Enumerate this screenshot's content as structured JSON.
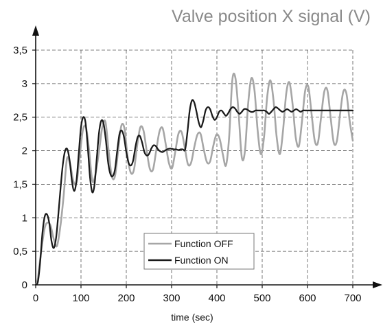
{
  "chart_data": {
    "type": "line",
    "title": "Valve position X signal (V)",
    "xlabel": "time (sec)",
    "ylabel": "",
    "xlim": [
      0,
      700
    ],
    "ylim": [
      0,
      3.5
    ],
    "x_ticks": [
      0,
      100,
      200,
      300,
      400,
      500,
      600,
      700
    ],
    "x_tick_labels": [
      "0",
      "100",
      "200",
      "300",
      "400",
      "500",
      "600",
      "700"
    ],
    "y_ticks": [
      0,
      0.5,
      1,
      1.5,
      2,
      2.5,
      3,
      3.5
    ],
    "y_tick_labels": [
      "0",
      "0,5",
      "1",
      "1,5",
      "2",
      "2,5",
      "3",
      "3,5"
    ],
    "grid": "dashed",
    "legend_position": "bottom-center",
    "series": [
      {
        "name": "Function OFF",
        "color": "#a6a6a6",
        "x": [
          0,
          5,
          12,
          20,
          27,
          33,
          40,
          47,
          55,
          62,
          69,
          76,
          83,
          90,
          97,
          104,
          111,
          118,
          125,
          132,
          140,
          147,
          154,
          161,
          168,
          175,
          182,
          189,
          196,
          203,
          210,
          217,
          224,
          231,
          238,
          245,
          252,
          259,
          266,
          273,
          280,
          287,
          294,
          301,
          308,
          315,
          322,
          329,
          336,
          343,
          350,
          357,
          364,
          371,
          378,
          385,
          392,
          399,
          406,
          413,
          420,
          427,
          434,
          441,
          448,
          455,
          462,
          469,
          476,
          483,
          490,
          497,
          504,
          511,
          518,
          525,
          532,
          539,
          546,
          553,
          560,
          567,
          574,
          581,
          588,
          595,
          602,
          609,
          616,
          623,
          630,
          637,
          644,
          651,
          658,
          665,
          672,
          679,
          686,
          693,
          700
        ],
        "y": [
          0.0,
          0.1,
          0.5,
          0.85,
          0.93,
          0.88,
          0.68,
          0.58,
          0.9,
          1.35,
          1.88,
          1.8,
          1.55,
          1.52,
          1.9,
          2.3,
          2.35,
          2.0,
          1.55,
          1.65,
          2.0,
          2.35,
          2.43,
          2.0,
          1.62,
          1.62,
          2.0,
          2.37,
          2.33,
          1.9,
          1.67,
          1.72,
          2.08,
          2.35,
          2.3,
          2.0,
          1.73,
          1.72,
          2.0,
          2.28,
          2.34,
          2.1,
          1.82,
          1.74,
          1.98,
          2.25,
          2.28,
          2.05,
          1.8,
          1.82,
          2.05,
          2.24,
          2.25,
          2.02,
          1.83,
          1.84,
          2.07,
          2.24,
          2.18,
          1.95,
          1.78,
          2.2,
          3.05,
          3.08,
          2.55,
          1.9,
          2.0,
          2.7,
          3.08,
          2.9,
          2.3,
          1.95,
          2.2,
          2.8,
          3.05,
          2.75,
          2.2,
          1.95,
          2.3,
          2.85,
          3.02,
          2.7,
          2.2,
          2.07,
          2.45,
          2.9,
          2.95,
          2.55,
          2.15,
          2.12,
          2.5,
          2.88,
          2.9,
          2.5,
          2.12,
          2.15,
          2.55,
          2.88,
          2.85,
          2.45,
          2.15
        ]
      },
      {
        "name": "Function ON",
        "color": "#1a1a1a",
        "x": [
          0,
          5,
          10,
          15,
          20,
          25,
          30,
          35,
          40,
          45,
          50,
          55,
          60,
          65,
          70,
          75,
          80,
          85,
          90,
          95,
          100,
          105,
          110,
          115,
          120,
          125,
          130,
          135,
          140,
          145,
          150,
          155,
          160,
          165,
          170,
          175,
          180,
          185,
          190,
          195,
          200,
          205,
          210,
          215,
          220,
          225,
          230,
          235,
          240,
          245,
          250,
          255,
          260,
          265,
          270,
          275,
          280,
          285,
          290,
          295,
          300,
          305,
          310,
          315,
          320,
          325,
          330,
          335,
          340,
          345,
          350,
          355,
          360,
          365,
          370,
          375,
          380,
          385,
          390,
          395,
          400,
          405,
          410,
          415,
          420,
          425,
          430,
          435,
          440,
          445,
          450,
          455,
          460,
          465,
          470,
          475,
          480,
          485,
          490,
          495,
          500,
          505,
          510,
          515,
          520,
          525,
          530,
          535,
          540,
          545,
          550,
          555,
          560,
          565,
          570,
          575,
          580,
          585,
          590,
          595,
          600,
          605,
          610,
          615,
          620,
          625,
          630,
          635,
          640,
          645,
          650,
          655,
          660,
          665,
          670,
          675,
          680,
          685,
          690,
          695,
          700
        ],
        "y": [
          0.0,
          0.05,
          0.35,
          0.78,
          1.02,
          1.05,
          0.92,
          0.65,
          0.55,
          0.7,
          1.05,
          1.45,
          1.8,
          2.0,
          2.02,
          1.85,
          1.55,
          1.4,
          1.55,
          1.95,
          2.35,
          2.5,
          2.42,
          2.05,
          1.6,
          1.38,
          1.5,
          1.9,
          2.28,
          2.45,
          2.4,
          2.15,
          1.82,
          1.65,
          1.62,
          1.72,
          2.0,
          2.25,
          2.3,
          2.2,
          1.98,
          1.82,
          1.78,
          1.85,
          2.05,
          2.2,
          2.22,
          2.12,
          1.98,
          1.93,
          1.95,
          2.03,
          2.08,
          2.07,
          2.02,
          1.99,
          1.98,
          2.0,
          2.02,
          2.03,
          2.03,
          2.02,
          2.02,
          2.01,
          2.02,
          2.02,
          2.02,
          2.28,
          2.6,
          2.75,
          2.72,
          2.58,
          2.42,
          2.35,
          2.45,
          2.6,
          2.65,
          2.62,
          2.52,
          2.46,
          2.5,
          2.58,
          2.6,
          2.56,
          2.52,
          2.56,
          2.62,
          2.65,
          2.63,
          2.58,
          2.55,
          2.58,
          2.62,
          2.62,
          2.6,
          2.58,
          2.58,
          2.6,
          2.6,
          2.6,
          2.6,
          2.6,
          2.58,
          2.55,
          2.58,
          2.62,
          2.65,
          2.63,
          2.6,
          2.58,
          2.6,
          2.62,
          2.6,
          2.58,
          2.6,
          2.62,
          2.6,
          2.58,
          2.6,
          2.6,
          2.6,
          2.6,
          2.6,
          2.6,
          2.6,
          2.6,
          2.6,
          2.6,
          2.6,
          2.6,
          2.6,
          2.6,
          2.6,
          2.6,
          2.6,
          2.6,
          2.6,
          2.6,
          2.6,
          2.6,
          2.6
        ]
      }
    ]
  }
}
